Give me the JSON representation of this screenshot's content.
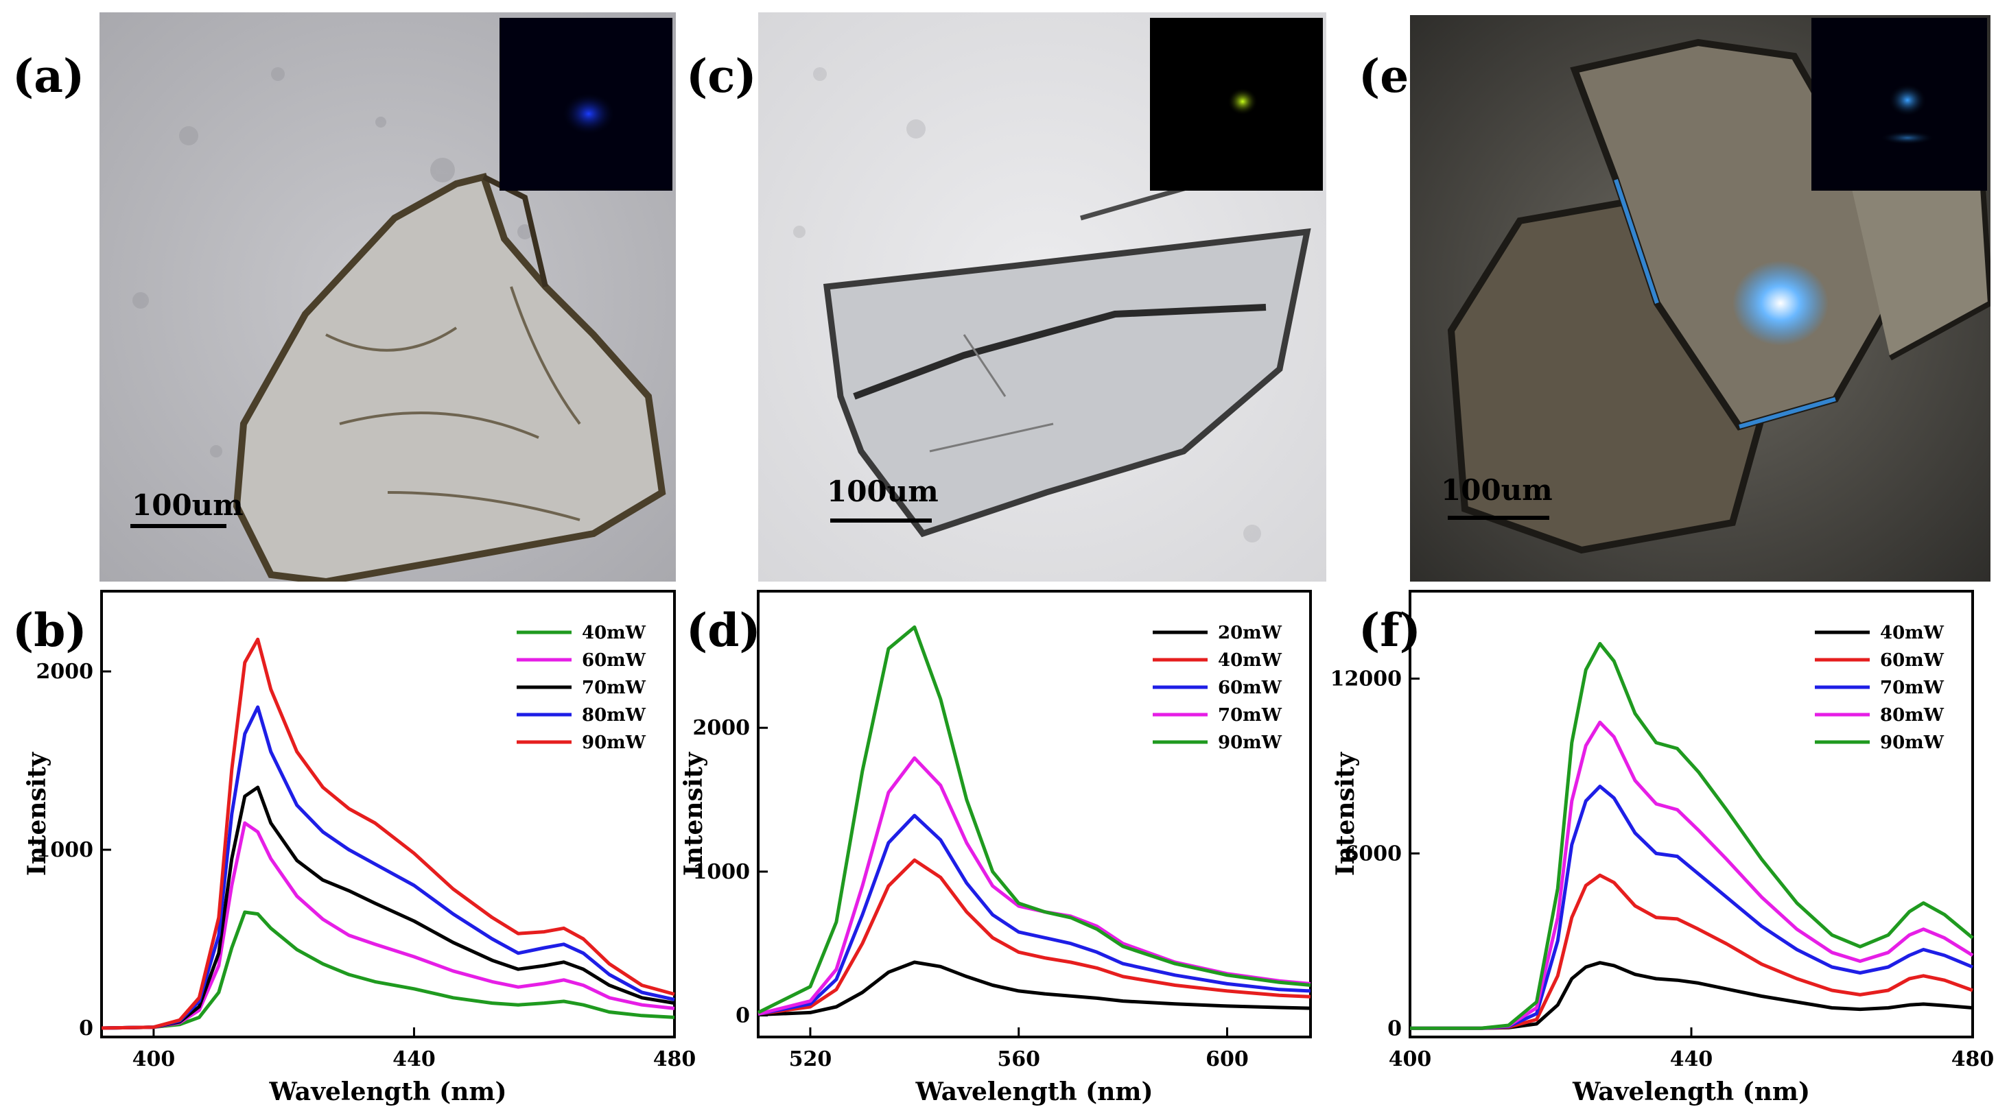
{
  "panel_labels": {
    "a": "(a)",
    "b": "(b)",
    "c": "(c)",
    "d": "(d)",
    "e": "(e)",
    "f": "(f)"
  },
  "micrographs": [
    {
      "scale_label": "100um",
      "inset_glow": "#1a3cff"
    },
    {
      "scale_label": "100um",
      "inset_glow": "#c8ff1a"
    },
    {
      "scale_label": "100um",
      "inset_glow": "#3aa0ff"
    }
  ],
  "chart_data": [
    {
      "type": "line",
      "xlabel": "Wavelength (nm)",
      "ylabel": "Intensity",
      "xlim": [
        392,
        480
      ],
      "ylim": [
        -50,
        2450
      ],
      "xticks": [
        400,
        440,
        480
      ],
      "yticks": [
        0,
        1000,
        2000
      ],
      "legend_position": "top-right",
      "series": [
        {
          "name": "40mW",
          "color": "#1f9a1f",
          "x": [
            392,
            400,
            404,
            407,
            410,
            412,
            414,
            416,
            418,
            422,
            426,
            430,
            434,
            440,
            446,
            452,
            456,
            460,
            463,
            466,
            470,
            475,
            480
          ],
          "y": [
            0,
            5,
            20,
            60,
            200,
            450,
            650,
            640,
            560,
            440,
            360,
            300,
            260,
            220,
            170,
            140,
            130,
            140,
            150,
            130,
            90,
            70,
            60
          ]
        },
        {
          "name": "60mW",
          "color": "#e61ee6",
          "x": [
            392,
            400,
            404,
            407,
            410,
            412,
            414,
            416,
            418,
            422,
            426,
            430,
            434,
            440,
            446,
            452,
            456,
            460,
            463,
            466,
            470,
            475,
            480
          ],
          "y": [
            0,
            5,
            30,
            100,
            350,
            800,
            1150,
            1100,
            950,
            740,
            610,
            520,
            470,
            400,
            320,
            260,
            230,
            250,
            270,
            240,
            170,
            130,
            110
          ]
        },
        {
          "name": "70mW",
          "color": "#000000",
          "x": [
            392,
            400,
            404,
            407,
            410,
            412,
            414,
            416,
            418,
            422,
            426,
            430,
            434,
            440,
            446,
            452,
            456,
            460,
            463,
            466,
            470,
            475,
            480
          ],
          "y": [
            0,
            5,
            35,
            120,
            420,
            950,
            1300,
            1350,
            1150,
            940,
            830,
            770,
            700,
            600,
            480,
            380,
            330,
            350,
            370,
            330,
            240,
            170,
            140
          ]
        },
        {
          "name": "80mW",
          "color": "#1e1ee6",
          "x": [
            392,
            400,
            404,
            407,
            410,
            412,
            414,
            416,
            418,
            422,
            426,
            430,
            434,
            440,
            446,
            452,
            456,
            460,
            463,
            466,
            470,
            475,
            480
          ],
          "y": [
            0,
            5,
            40,
            150,
            520,
            1200,
            1650,
            1800,
            1550,
            1250,
            1100,
            1000,
            920,
            800,
            640,
            500,
            420,
            450,
            470,
            420,
            300,
            200,
            160
          ]
        },
        {
          "name": "90mW",
          "color": "#e61e1e",
          "x": [
            392,
            400,
            404,
            407,
            410,
            412,
            414,
            416,
            418,
            422,
            426,
            430,
            434,
            440,
            446,
            452,
            456,
            460,
            463,
            466,
            470,
            475,
            480
          ],
          "y": [
            0,
            5,
            45,
            170,
            620,
            1450,
            2050,
            2180,
            1900,
            1550,
            1350,
            1230,
            1150,
            980,
            780,
            620,
            530,
            540,
            560,
            500,
            360,
            240,
            190
          ]
        }
      ]
    },
    {
      "type": "line",
      "xlabel": "Wavelength (nm)",
      "ylabel": "Intensity",
      "xlim": [
        510,
        616
      ],
      "ylim": [
        -150,
        2950
      ],
      "xticks": [
        520,
        560,
        600
      ],
      "yticks": [
        0,
        1000,
        2000
      ],
      "legend_position": "top-right",
      "series": [
        {
          "name": "20mW",
          "color": "#000000",
          "x": [
            510,
            520,
            525,
            530,
            535,
            540,
            545,
            550,
            555,
            560,
            565,
            570,
            575,
            580,
            590,
            600,
            610,
            616
          ],
          "y": [
            5,
            20,
            60,
            160,
            300,
            370,
            340,
            270,
            210,
            170,
            150,
            135,
            120,
            100,
            80,
            65,
            55,
            50
          ]
        },
        {
          "name": "40mW",
          "color": "#e61e1e",
          "x": [
            510,
            520,
            525,
            530,
            535,
            540,
            545,
            550,
            555,
            560,
            565,
            570,
            575,
            580,
            590,
            600,
            610,
            616
          ],
          "y": [
            10,
            60,
            180,
            500,
            900,
            1080,
            960,
            720,
            540,
            440,
            400,
            370,
            330,
            270,
            210,
            170,
            140,
            130
          ]
        },
        {
          "name": "60mW",
          "color": "#1e1ee6",
          "x": [
            510,
            520,
            525,
            530,
            535,
            540,
            545,
            550,
            555,
            560,
            565,
            570,
            575,
            580,
            590,
            600,
            610,
            616
          ],
          "y": [
            10,
            80,
            250,
            700,
            1200,
            1390,
            1220,
            920,
            700,
            580,
            540,
            500,
            440,
            360,
            280,
            220,
            180,
            170
          ]
        },
        {
          "name": "70mW",
          "color": "#e61ee6",
          "x": [
            510,
            520,
            525,
            530,
            535,
            540,
            545,
            550,
            555,
            560,
            565,
            570,
            575,
            580,
            590,
            600,
            610,
            616
          ],
          "y": [
            10,
            100,
            320,
            900,
            1550,
            1790,
            1600,
            1200,
            900,
            760,
            720,
            690,
            620,
            500,
            370,
            290,
            240,
            220
          ]
        },
        {
          "name": "90mW",
          "color": "#1f9a1f",
          "x": [
            510,
            520,
            525,
            530,
            535,
            540,
            545,
            550,
            555,
            560,
            565,
            570,
            575,
            580,
            590,
            600,
            610,
            616
          ],
          "y": [
            20,
            200,
            650,
            1700,
            2550,
            2700,
            2200,
            1500,
            1000,
            780,
            720,
            680,
            600,
            480,
            360,
            280,
            230,
            210
          ]
        }
      ]
    },
    {
      "type": "line",
      "xlabel": "Wavelength (nm)",
      "ylabel": "Intensity",
      "xlim": [
        400,
        480
      ],
      "ylim": [
        -300,
        15000
      ],
      "xticks": [
        400,
        440,
        480
      ],
      "yticks": [
        0,
        6000,
        12000
      ],
      "legend_position": "top-right",
      "series": [
        {
          "name": "40mW",
          "color": "#000000",
          "x": [
            400,
            410,
            414,
            418,
            421,
            423,
            425,
            427,
            429,
            432,
            435,
            438,
            441,
            445,
            450,
            455,
            460,
            464,
            468,
            471,
            473,
            476,
            480
          ],
          "y": [
            0,
            0,
            20,
            150,
            800,
            1700,
            2100,
            2250,
            2150,
            1850,
            1700,
            1650,
            1550,
            1350,
            1100,
            900,
            700,
            650,
            700,
            800,
            830,
            780,
            700
          ]
        },
        {
          "name": "60mW",
          "color": "#e61e1e",
          "x": [
            400,
            410,
            414,
            418,
            421,
            423,
            425,
            427,
            429,
            432,
            435,
            438,
            441,
            445,
            450,
            455,
            460,
            464,
            468,
            471,
            473,
            476,
            480
          ],
          "y": [
            0,
            0,
            40,
            300,
            1800,
            3800,
            4900,
            5250,
            5000,
            4200,
            3800,
            3750,
            3400,
            2900,
            2200,
            1700,
            1300,
            1150,
            1300,
            1700,
            1800,
            1650,
            1300
          ]
        },
        {
          "name": "70mW",
          "color": "#1e1ee6",
          "x": [
            400,
            410,
            414,
            418,
            421,
            423,
            425,
            427,
            429,
            432,
            435,
            438,
            441,
            445,
            450,
            455,
            460,
            464,
            468,
            471,
            473,
            476,
            480
          ],
          "y": [
            0,
            0,
            60,
            500,
            3000,
            6300,
            7800,
            8300,
            7900,
            6700,
            6000,
            5900,
            5300,
            4500,
            3500,
            2700,
            2100,
            1900,
            2100,
            2500,
            2700,
            2500,
            2100
          ]
        },
        {
          "name": "80mW",
          "color": "#e61ee6",
          "x": [
            400,
            410,
            414,
            418,
            421,
            423,
            425,
            427,
            429,
            432,
            435,
            438,
            441,
            445,
            450,
            455,
            460,
            464,
            468,
            471,
            473,
            476,
            480
          ],
          "y": [
            0,
            0,
            80,
            700,
            3800,
            7800,
            9700,
            10500,
            10000,
            8500,
            7700,
            7500,
            6800,
            5800,
            4500,
            3400,
            2600,
            2300,
            2600,
            3200,
            3400,
            3100,
            2500
          ]
        },
        {
          "name": "90mW",
          "color": "#1f9a1f",
          "x": [
            400,
            410,
            414,
            418,
            421,
            423,
            425,
            427,
            429,
            432,
            435,
            438,
            441,
            445,
            450,
            455,
            460,
            464,
            468,
            471,
            473,
            476,
            480
          ],
          "y": [
            0,
            0,
            100,
            900,
            4800,
            9800,
            12300,
            13200,
            12600,
            10800,
            9800,
            9600,
            8800,
            7500,
            5800,
            4300,
            3200,
            2800,
            3200,
            4000,
            4300,
            3900,
            3100
          ]
        }
      ]
    }
  ]
}
